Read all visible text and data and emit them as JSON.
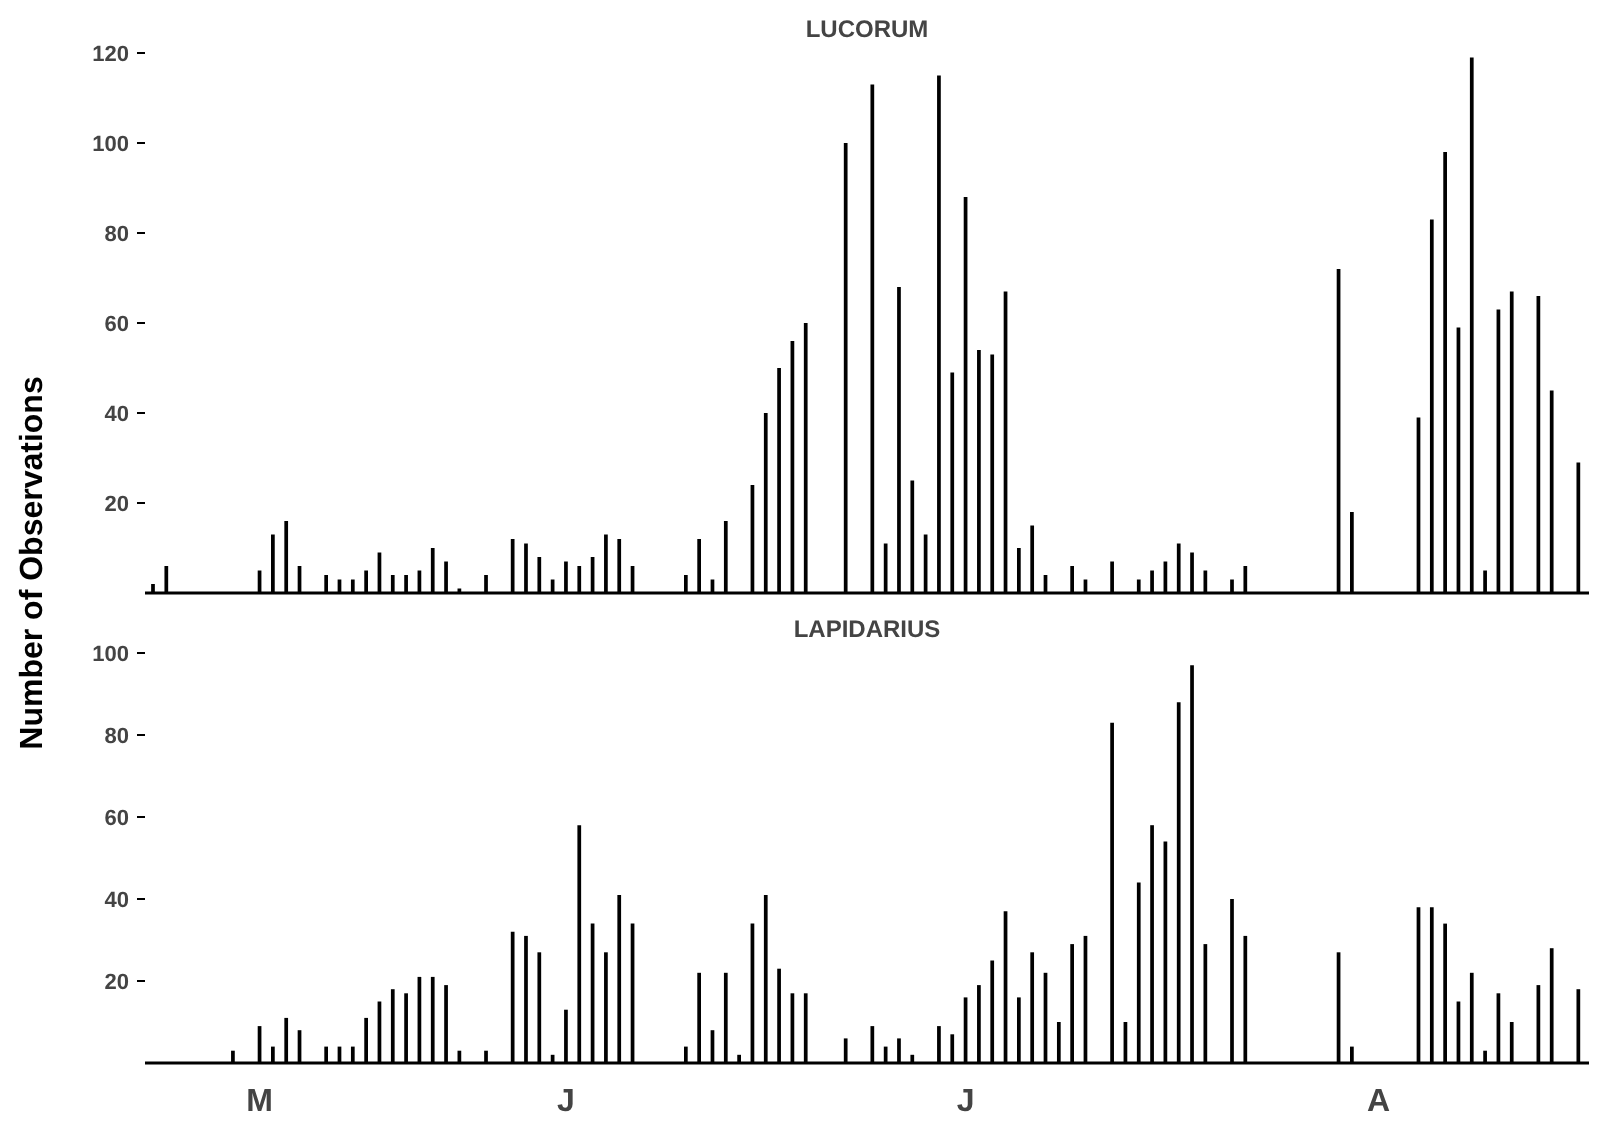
{
  "chart_data": [
    {
      "type": "bar",
      "title": "LUCORUM",
      "ylabel": "Number of Observations",
      "categories": [
        null,
        null,
        null,
        null,
        null,
        null,
        null,
        null,
        null,
        null,
        null,
        null,
        null,
        null,
        null,
        null,
        null,
        null,
        null,
        null,
        null,
        null,
        null,
        null,
        null,
        null,
        null,
        null,
        null,
        null,
        null,
        null,
        null,
        null,
        null,
        null,
        null,
        null,
        null,
        null,
        null,
        null,
        null,
        null,
        null,
        null,
        null,
        null,
        null,
        null,
        null,
        null,
        null,
        null,
        null,
        null,
        null,
        null,
        null,
        null,
        null,
        null,
        null,
        null,
        null,
        null,
        null,
        null,
        null,
        null,
        null,
        null,
        null,
        null,
        null,
        null,
        null,
        null,
        null,
        null,
        null,
        null,
        null,
        null,
        null,
        null,
        null,
        null,
        null,
        null,
        null,
        null,
        null,
        null,
        null,
        null,
        null,
        null,
        null,
        null,
        null,
        null,
        null,
        null,
        null,
        null,
        null,
        null
      ],
      "series": [
        {
          "color": "#000000",
          "values": [
            2,
            6,
            null,
            null,
            null,
            null,
            null,
            null,
            5,
            13,
            16,
            6,
            null,
            4,
            3,
            3,
            5,
            9,
            4,
            4,
            5,
            10,
            7,
            1,
            null,
            4,
            null,
            12,
            11,
            8,
            3,
            7,
            6,
            8,
            13,
            12,
            6,
            null,
            null,
            null,
            4,
            12,
            3,
            16,
            null,
            24,
            40,
            50,
            56,
            60,
            null,
            null,
            100,
            null,
            113,
            11,
            68,
            25,
            13,
            115,
            49,
            88,
            54,
            53,
            67,
            10,
            15,
            4,
            null,
            6,
            3,
            null,
            7,
            null,
            3,
            5,
            7,
            11,
            9,
            5,
            null,
            3,
            6,
            null,
            null,
            null,
            null,
            null,
            null,
            72,
            18,
            null,
            null,
            null,
            null,
            39,
            83,
            98,
            59,
            119,
            5,
            63,
            67,
            null,
            66,
            45,
            null,
            29
          ]
        }
      ],
      "ylim": [
        0,
        120
      ],
      "yticks": [
        20,
        40,
        60,
        80,
        100,
        120
      ],
      "grid": false
    },
    {
      "type": "bar",
      "title": "LAPIDARIUS",
      "categories": [
        null,
        null,
        null,
        null,
        null,
        null,
        null,
        null,
        "M",
        null,
        null,
        null,
        null,
        null,
        null,
        null,
        null,
        null,
        null,
        null,
        null,
        null,
        null,
        null,
        null,
        null,
        null,
        null,
        null,
        null,
        null,
        "J",
        null,
        null,
        null,
        null,
        null,
        null,
        null,
        null,
        null,
        null,
        null,
        null,
        null,
        null,
        null,
        null,
        null,
        null,
        null,
        null,
        null,
        null,
        null,
        null,
        null,
        null,
        null,
        null,
        null,
        "J",
        null,
        null,
        null,
        null,
        null,
        null,
        null,
        null,
        null,
        null,
        null,
        null,
        null,
        null,
        null,
        null,
        null,
        null,
        null,
        null,
        null,
        null,
        null,
        null,
        null,
        null,
        null,
        null,
        null,
        null,
        "A",
        null,
        null,
        null,
        null,
        null,
        null,
        null,
        null,
        null,
        null,
        null,
        null,
        null,
        null,
        null
      ],
      "series": [
        {
          "color": "#000000",
          "values": [
            null,
            null,
            null,
            null,
            null,
            null,
            3,
            null,
            9,
            4,
            11,
            8,
            null,
            4,
            4,
            4,
            11,
            15,
            18,
            17,
            21,
            21,
            19,
            3,
            null,
            3,
            null,
            32,
            31,
            27,
            2,
            13,
            58,
            34,
            27,
            41,
            34,
            null,
            null,
            null,
            4,
            22,
            8,
            22,
            2,
            34,
            41,
            23,
            17,
            17,
            null,
            null,
            6,
            null,
            9,
            4,
            6,
            2,
            null,
            9,
            7,
            16,
            19,
            25,
            37,
            16,
            27,
            22,
            10,
            29,
            31,
            null,
            83,
            10,
            44,
            58,
            54,
            88,
            97,
            29,
            null,
            40,
            31,
            null,
            null,
            null,
            null,
            null,
            null,
            27,
            4,
            null,
            null,
            null,
            null,
            38,
            38,
            34,
            15,
            22,
            3,
            17,
            10,
            null,
            19,
            28,
            null,
            18
          ]
        }
      ],
      "ylim": [
        0,
        100
      ],
      "yticks": [
        20,
        40,
        60,
        80,
        100
      ],
      "grid": false
    }
  ]
}
